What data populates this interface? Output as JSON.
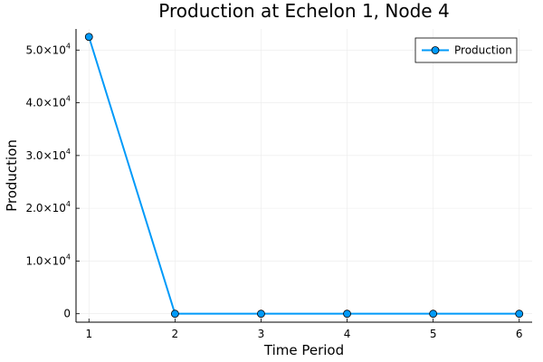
{
  "colors": {
    "series": "#009af9",
    "marker_stroke": "#000000",
    "grid": "#ebebeb",
    "axis": "#000000"
  },
  "chart_data": {
    "type": "line",
    "title": "Production at Echelon 1, Node 4",
    "xlabel": "Time Period",
    "ylabel": "Production",
    "x": [
      1,
      2,
      3,
      4,
      5,
      6
    ],
    "series": [
      {
        "name": "Production",
        "values": [
          52500,
          0,
          0,
          0,
          0,
          0
        ],
        "color": "#009af9",
        "marker": "circle"
      }
    ],
    "xlim": [
      0.85,
      6.15
    ],
    "ylim": [
      -1600,
      54000
    ],
    "x_ticks": [
      1,
      2,
      3,
      4,
      5,
      6
    ],
    "y_ticks": [
      {
        "value": 0,
        "mantissa": "0",
        "exponent": ""
      },
      {
        "value": 10000,
        "mantissa": "1.0×10",
        "exponent": "4"
      },
      {
        "value": 20000,
        "mantissa": "2.0×10",
        "exponent": "4"
      },
      {
        "value": 30000,
        "mantissa": "3.0×10",
        "exponent": "4"
      },
      {
        "value": 40000,
        "mantissa": "4.0×10",
        "exponent": "4"
      },
      {
        "value": 50000,
        "mantissa": "5.0×10",
        "exponent": "4"
      }
    ],
    "grid": true,
    "legend_position": "top-right"
  }
}
